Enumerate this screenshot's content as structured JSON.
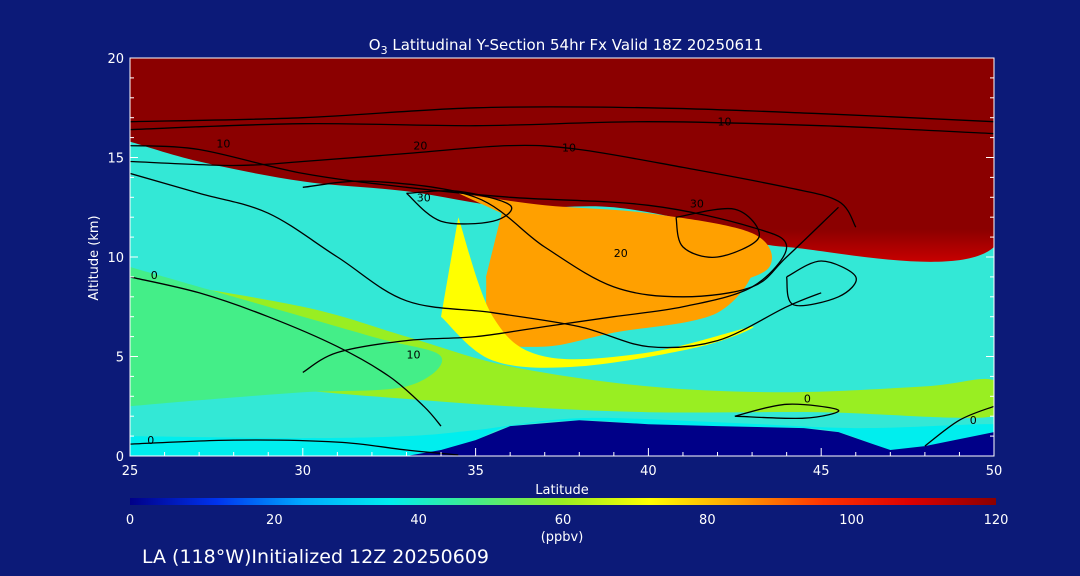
{
  "page": {
    "background": "#0c1a78",
    "footer": "LA (118°W)Initialized 12Z 20250609"
  },
  "chart_data": {
    "type": "heatmap",
    "title_prefix": "O",
    "title_sub": "3",
    "title_rest": " Latitudinal Y-Section 54hr  Fx Valid 18Z 20250611",
    "xlabel": "Latitude",
    "ylabel": "Altitude (km)",
    "xlim": [
      25,
      50
    ],
    "ylim": [
      0,
      20
    ],
    "xticks": [
      "25",
      "30",
      "35",
      "40",
      "45",
      "50"
    ],
    "xtick_values": [
      25,
      30,
      35,
      40,
      45,
      50
    ],
    "yticks": [
      "0",
      "5",
      "10",
      "15",
      "20"
    ],
    "ytick_values": [
      0,
      5,
      10,
      15,
      20
    ],
    "colorbar": {
      "label": "(ppbv)",
      "range": [
        0,
        120
      ],
      "ticks": [
        "0",
        "20",
        "40",
        "60",
        "80",
        "100",
        "120"
      ],
      "tick_values": [
        0,
        20,
        40,
        60,
        80,
        100,
        120
      ],
      "colors": [
        "#000088",
        "#0033ee",
        "#00aaff",
        "#00eeee",
        "#44ee88",
        "#99ee22",
        "#ffff00",
        "#ffa000",
        "#ff3300",
        "#dd0000",
        "#8b0000"
      ]
    },
    "terrain": [
      [
        33,
        0
      ],
      [
        34,
        0.3
      ],
      [
        35,
        0.8
      ],
      [
        36,
        1.5
      ],
      [
        38,
        1.8
      ],
      [
        40,
        1.6
      ],
      [
        42,
        1.5
      ],
      [
        44.5,
        1.4
      ],
      [
        45.5,
        1.2
      ],
      [
        46.5,
        0.6
      ],
      [
        47,
        0.3
      ],
      [
        48,
        0.5
      ],
      [
        50,
        1.2
      ],
      [
        50,
        0
      ],
      [
        33,
        0
      ]
    ],
    "fields": [
      {
        "value": 115,
        "level": "stratosphere",
        "points": [
          [
            25,
            20
          ],
          [
            50,
            20
          ],
          [
            50,
            10.5
          ],
          [
            44,
            10.5
          ],
          [
            42,
            11.5
          ],
          [
            39,
            12.5
          ],
          [
            36,
            12.5
          ],
          [
            33,
            13.3
          ],
          [
            30,
            13.8
          ],
          [
            27,
            14.8
          ],
          [
            25,
            15.8
          ]
        ]
      },
      {
        "value": 88,
        "level": "upper-plume",
        "points": [
          [
            34.5,
            13.2
          ],
          [
            37,
            12.6
          ],
          [
            40,
            12.2
          ],
          [
            43,
            11.2
          ],
          [
            43.5,
            9.5
          ],
          [
            42,
            8.5
          ],
          [
            40,
            8
          ],
          [
            38,
            8.5
          ],
          [
            36.2,
            9.5
          ],
          [
            36,
            12
          ]
        ]
      },
      {
        "value": 78,
        "level": "mid-plume",
        "points": [
          [
            35.8,
            12.5
          ],
          [
            37.5,
            10.3
          ],
          [
            40.5,
            9
          ],
          [
            43,
            9.8
          ],
          [
            42,
            7.2
          ],
          [
            39,
            6.2
          ],
          [
            37,
            5.5
          ],
          [
            35.5,
            6
          ],
          [
            35.3,
            9
          ]
        ]
      },
      {
        "value": 66,
        "level": "lower-plume",
        "points": [
          [
            34.5,
            12
          ],
          [
            35.5,
            7
          ],
          [
            37,
            5
          ],
          [
            40,
            5.2
          ],
          [
            43,
            6.5
          ],
          [
            41.5,
            5.5
          ],
          [
            38,
            4.5
          ],
          [
            35.5,
            4.8
          ],
          [
            34,
            7
          ]
        ]
      },
      {
        "value": 56,
        "level": "mid-trop",
        "points": [
          [
            25,
            9
          ],
          [
            30,
            7.5
          ],
          [
            33,
            6
          ],
          [
            36,
            4.5
          ],
          [
            40,
            3.5
          ],
          [
            44,
            3.2
          ],
          [
            48,
            3.5
          ],
          [
            50,
            3.8
          ],
          [
            50,
            2
          ],
          [
            45,
            2.2
          ],
          [
            40,
            2.2
          ],
          [
            36,
            2.5
          ],
          [
            32,
            3
          ],
          [
            28,
            3.5
          ],
          [
            25,
            3
          ]
        ]
      },
      {
        "value": 44,
        "level": "low-trop",
        "points": [
          [
            25,
            9.5
          ],
          [
            28,
            8
          ],
          [
            32,
            6
          ],
          [
            34,
            5
          ],
          [
            33,
            3.5
          ],
          [
            30,
            3.2
          ],
          [
            27,
            2.8
          ],
          [
            25,
            2.5
          ]
        ]
      },
      {
        "value": 38,
        "level": "surface",
        "points": [
          [
            25,
            1
          ],
          [
            30,
            0.9
          ],
          [
            33,
            1
          ],
          [
            35,
            1.3
          ],
          [
            38,
            1.9
          ],
          [
            42,
            1.7
          ],
          [
            46,
            1.4
          ],
          [
            50,
            1.6
          ],
          [
            50,
            1.2
          ],
          [
            48,
            0.5
          ],
          [
            47,
            0.3
          ],
          [
            46.5,
            0.6
          ],
          [
            45.5,
            1.2
          ],
          [
            44.5,
            1.4
          ],
          [
            42,
            1.5
          ],
          [
            40,
            1.6
          ],
          [
            38,
            1.8
          ],
          [
            36,
            1.5
          ],
          [
            35,
            0.8
          ],
          [
            34,
            0.3
          ],
          [
            33,
            0
          ],
          [
            25,
            0
          ]
        ]
      }
    ],
    "contours": [
      {
        "label": "0",
        "label_at": [
          25.5,
          0.6
        ],
        "points": [
          [
            25,
            0.6
          ],
          [
            28,
            0.8
          ],
          [
            31,
            0.7
          ],
          [
            33,
            0.3
          ],
          [
            34.5,
            0.05
          ]
        ]
      },
      {
        "label": "0",
        "label_at": [
          25.6,
          8.9
        ],
        "points": [
          [
            25,
            9
          ],
          [
            27,
            8.2
          ],
          [
            29,
            7
          ],
          [
            31,
            5.5
          ],
          [
            32.5,
            4
          ],
          [
            33.5,
            2.5
          ],
          [
            34,
            1.5
          ]
        ]
      },
      {
        "label": "10",
        "label_at": [
          37.5,
          15.3
        ],
        "points": [
          [
            25,
            16.8
          ],
          [
            30,
            17
          ],
          [
            35,
            17.5
          ],
          [
            40,
            17.5
          ],
          [
            45,
            17.2
          ],
          [
            50,
            16.8
          ]
        ]
      },
      {
        "label": "10",
        "label_at": [
          42,
          16.6
        ],
        "points": [
          [
            25,
            16.4
          ],
          [
            30,
            16.7
          ],
          [
            35,
            16.6
          ],
          [
            40,
            16.8
          ],
          [
            45,
            16.6
          ],
          [
            50,
            16.2
          ]
        ]
      },
      {
        "label": "10",
        "label_at": [
          27.5,
          15.5
        ],
        "points": [
          [
            25,
            15.6
          ],
          [
            27,
            15.4
          ],
          [
            30,
            14.2
          ],
          [
            33,
            13.5
          ],
          [
            36,
            13
          ],
          [
            40,
            12.6
          ],
          [
            43,
            11.5
          ],
          [
            44,
            10.5
          ],
          [
            43,
            8.5
          ],
          [
            41,
            7.5
          ],
          [
            39,
            7
          ],
          [
            37,
            6.5
          ],
          [
            35,
            6
          ],
          [
            33,
            5.8
          ],
          [
            31,
            5.2
          ],
          [
            30,
            4.2
          ]
        ]
      },
      {
        "label": "10",
        "label_at": [
          33,
          4.9
        ],
        "points": [
          [
            25,
            14.2
          ],
          [
            27,
            13.2
          ],
          [
            29,
            12.2
          ],
          [
            31,
            10
          ],
          [
            33,
            7.8
          ],
          [
            35.5,
            7.2
          ],
          [
            38,
            6.5
          ],
          [
            40,
            5.5
          ],
          [
            42,
            5.8
          ],
          [
            44,
            7.5
          ],
          [
            45,
            8.2
          ]
        ]
      },
      {
        "label": "20",
        "label_at": [
          33.2,
          15.4
        ],
        "points": [
          [
            25,
            14.8
          ],
          [
            28,
            14.6
          ],
          [
            30,
            14.8
          ],
          [
            33,
            15.2
          ],
          [
            36,
            15.6
          ],
          [
            38,
            15.4
          ],
          [
            41,
            14.5
          ],
          [
            44,
            13.5
          ],
          [
            45.5,
            12.8
          ],
          [
            46,
            11.5
          ]
        ]
      },
      {
        "label": "20",
        "label_at": [
          39,
          10
        ],
        "points": [
          [
            30,
            13.5
          ],
          [
            32,
            13.8
          ],
          [
            35,
            13
          ],
          [
            37,
            10.5
          ],
          [
            39,
            8.5
          ],
          [
            41,
            8
          ],
          [
            43,
            8.5
          ],
          [
            44,
            10
          ],
          [
            45.5,
            12.5
          ]
        ]
      },
      {
        "label": "30",
        "label_at": [
          33.3,
          12.8
        ],
        "points": [
          [
            33,
            13.2
          ],
          [
            34.5,
            13.3
          ],
          [
            36,
            12.6
          ],
          [
            35.5,
            11.8
          ],
          [
            34,
            11.8
          ],
          [
            33,
            13.2
          ]
        ]
      },
      {
        "label": "30",
        "label_at": [
          41.2,
          12.5
        ],
        "points": [
          [
            40.8,
            12
          ],
          [
            42.5,
            12.4
          ],
          [
            43.2,
            11
          ],
          [
            42,
            10
          ],
          [
            41,
            10.5
          ],
          [
            40.8,
            12
          ]
        ]
      },
      {
        "label": "0",
        "label_at": [
          44.5,
          2.7
        ],
        "points": [
          [
            42.5,
            2
          ],
          [
            44,
            2.6
          ],
          [
            45.5,
            2.3
          ],
          [
            44.5,
            1.9
          ],
          [
            42.5,
            2
          ]
        ]
      },
      {
        "label": "0",
        "label_at": [
          49.3,
          1.6
        ],
        "points": [
          [
            48,
            0.5
          ],
          [
            49,
            1.8
          ],
          [
            50,
            2.5
          ]
        ]
      },
      {
        "label": "",
        "label_at": [
          0,
          0
        ],
        "points": [
          [
            44,
            9
          ],
          [
            45,
            9.8
          ],
          [
            46,
            9
          ],
          [
            45.5,
            8
          ],
          [
            44.2,
            7.6
          ],
          [
            44,
            9
          ]
        ]
      }
    ]
  }
}
